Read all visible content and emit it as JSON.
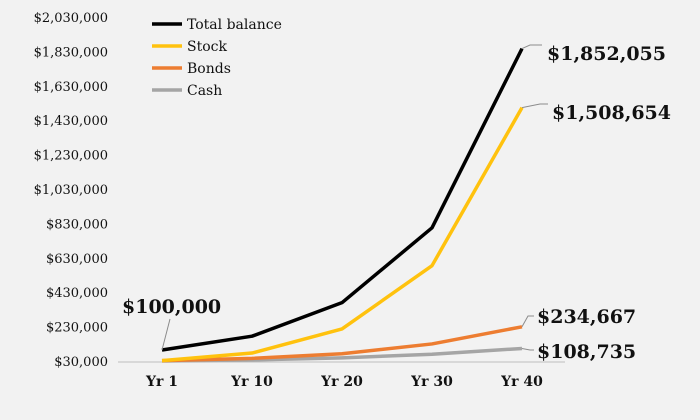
{
  "chart_data": {
    "type": "line",
    "title": "",
    "xlabel": "",
    "ylabel": "",
    "categories": [
      "Yr 1",
      "Yr 10",
      "Yr 20",
      "Yr 30",
      "Yr 40"
    ],
    "ylim": [
      30000,
      2030000
    ],
    "yticks": [
      30000,
      230000,
      430000,
      630000,
      830000,
      1030000,
      1230000,
      1430000,
      1630000,
      1830000,
      2030000
    ],
    "ytick_labels": [
      "$30,000",
      "$230,000",
      "$430,000",
      "$630,000",
      "$830,000",
      "$1,030,000",
      "$1,230,000",
      "$1,430,000",
      "$1,630,000",
      "$1,830,000",
      "$2,030,000"
    ],
    "grid": false,
    "legend_position": "top-left",
    "series": [
      {
        "name": "Total balance",
        "color": "#000000",
        "values": [
          100000,
          180000,
          375000,
          810000,
          1852055
        ]
      },
      {
        "name": "Stock",
        "color": "#FFC20E",
        "values": [
          38000,
          82000,
          222000,
          590000,
          1508654
        ]
      },
      {
        "name": "Bonds",
        "color": "#ED7D31",
        "values": [
          38000,
          51000,
          78000,
          135000,
          234667
        ]
      },
      {
        "name": "Cash",
        "color": "#A5A5A5",
        "values": [
          36000,
          42000,
          54000,
          75000,
          108735
        ]
      }
    ],
    "annotations": [
      {
        "text": "$100,000",
        "series": 0,
        "point": 0
      },
      {
        "text": "$1,852,055",
        "series": 0,
        "point": 4
      },
      {
        "text": "$1,508,654",
        "series": 1,
        "point": 4
      },
      {
        "text": "$234,667",
        "series": 2,
        "point": 4
      },
      {
        "text": "$108,735",
        "series": 3,
        "point": 4
      }
    ]
  }
}
